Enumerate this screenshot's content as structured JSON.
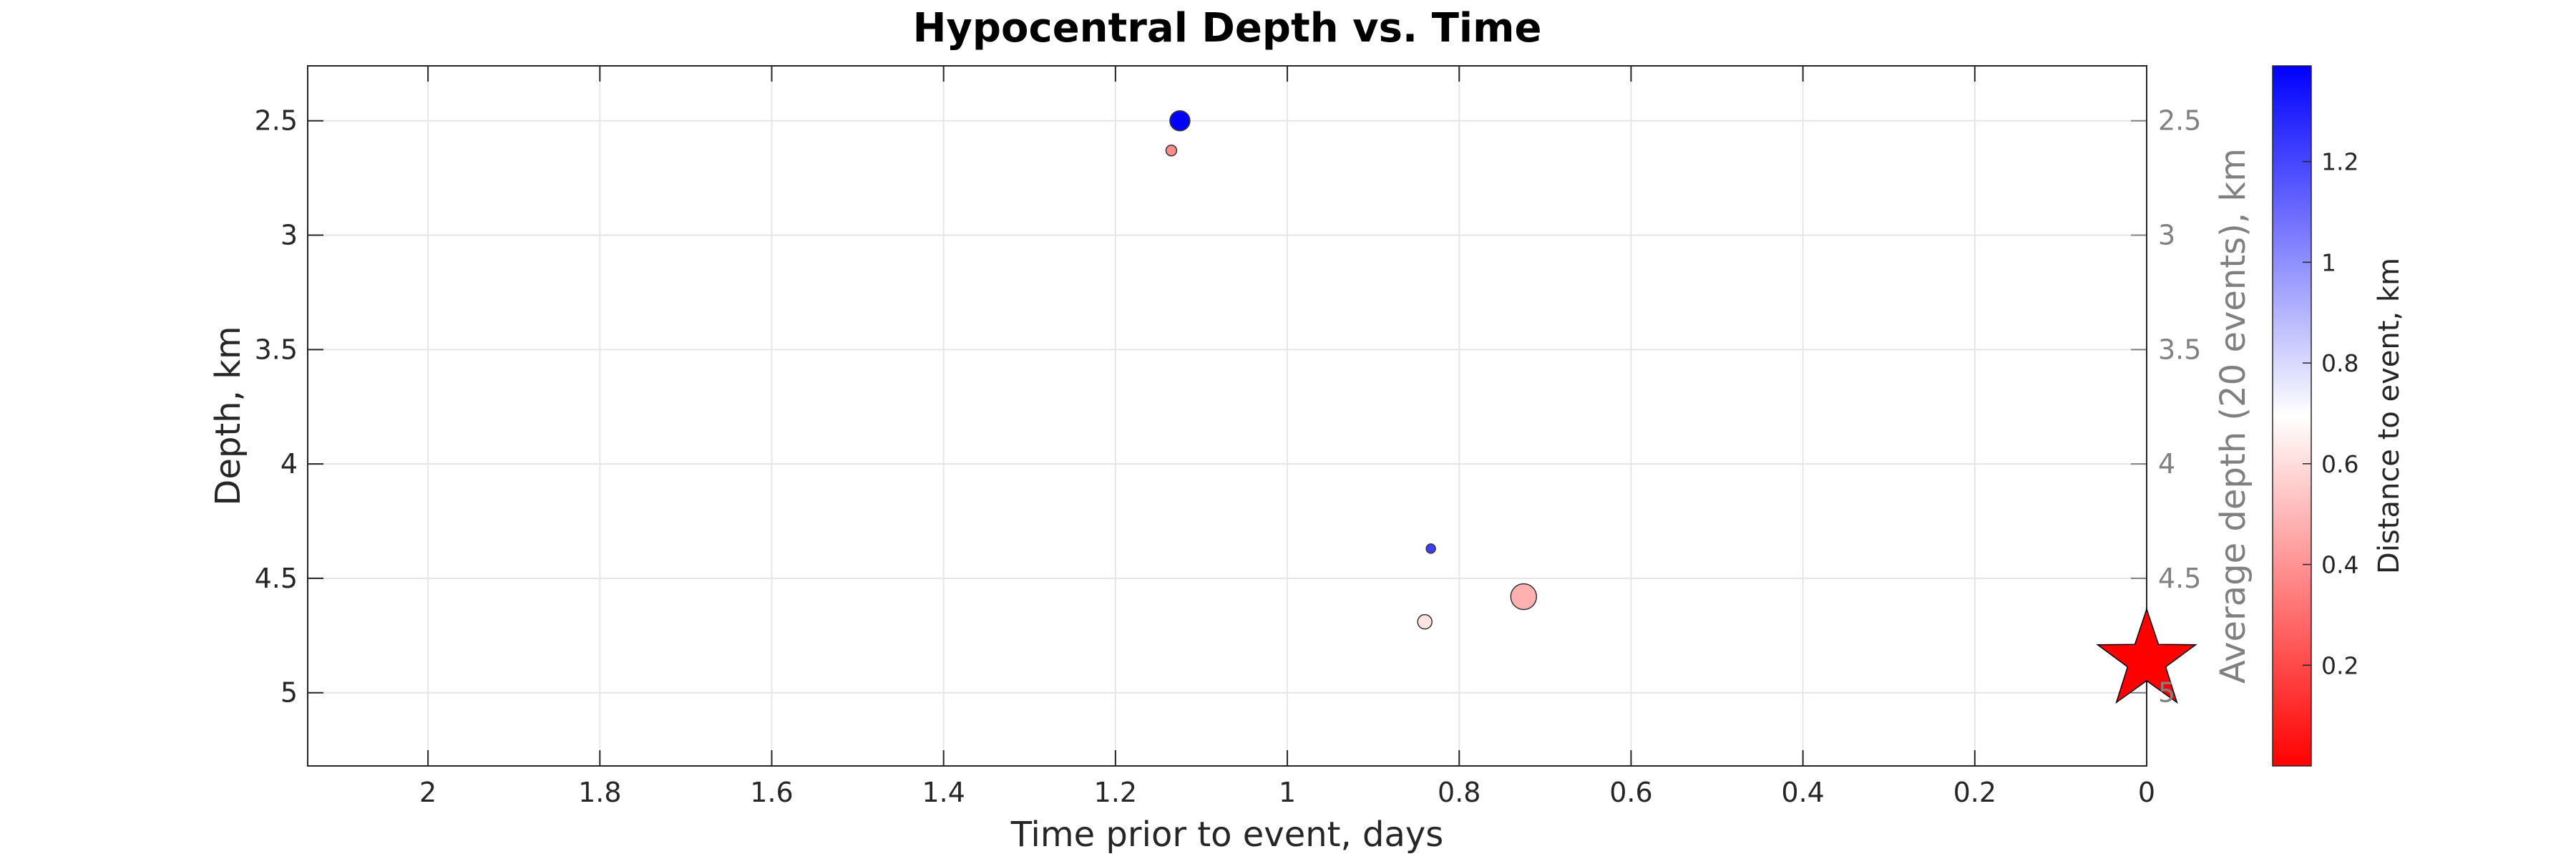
{
  "chart_data": {
    "type": "scatter",
    "title": "Hypocentral Depth vs. Time",
    "xlabel": "Time prior to event, days",
    "ylabel": "Depth, km",
    "ylabel_right": "Average depth (20 events), km",
    "colorbar_label": "Distance to event, km",
    "xlim": [
      2.14,
      0
    ],
    "ylim": [
      5.32,
      2.26
    ],
    "x_reversed": true,
    "y_reversed": true,
    "grid": true,
    "x_ticks": [
      2,
      1.8,
      1.6,
      1.4,
      1.2,
      1,
      0.8,
      0.6,
      0.4,
      0.2,
      0
    ],
    "x_tick_labels": [
      "2",
      "1.8",
      "1.6",
      "1.4",
      "1.2",
      "1",
      "0.8",
      "0.6",
      "0.4",
      "0.2",
      "0"
    ],
    "y_ticks": [
      2.5,
      3,
      3.5,
      4,
      4.5,
      5
    ],
    "y_tick_labels": [
      "2.5",
      "3",
      "3.5",
      "4",
      "4.5",
      "5"
    ],
    "y_right_ticks": [
      2.5,
      3,
      3.5,
      4,
      4.5,
      5
    ],
    "y_right_tick_labels": [
      "2.5",
      "3",
      "3.5",
      "4",
      "4.5",
      "5"
    ],
    "colorbar": {
      "range": [
        0,
        1.39
      ],
      "ticks": [
        0.2,
        0.4,
        0.6,
        0.8,
        1,
        1.2
      ],
      "tick_labels": [
        "0.2",
        "0.4",
        "0.6",
        "0.8",
        "1",
        "1.2"
      ],
      "colors": [
        "#ff0000",
        "#ffffff",
        "#0000ff"
      ]
    },
    "points": [
      {
        "time_days": 1.125,
        "depth_km": 2.5,
        "distance_km": 1.39,
        "size": 1.0
      },
      {
        "time_days": 1.135,
        "depth_km": 2.63,
        "distance_km": 0.38,
        "size": 0.35
      },
      {
        "time_days": 0.833,
        "depth_km": 4.37,
        "distance_km": 1.22,
        "size": 0.25
      },
      {
        "time_days": 0.725,
        "depth_km": 4.58,
        "distance_km": 0.48,
        "size": 1.4
      },
      {
        "time_days": 0.84,
        "depth_km": 4.69,
        "distance_km": 0.62,
        "size": 0.6
      }
    ],
    "event": {
      "time_days": 0,
      "depth_km": 4.86,
      "marker": "star",
      "color": "#ff0000"
    }
  }
}
